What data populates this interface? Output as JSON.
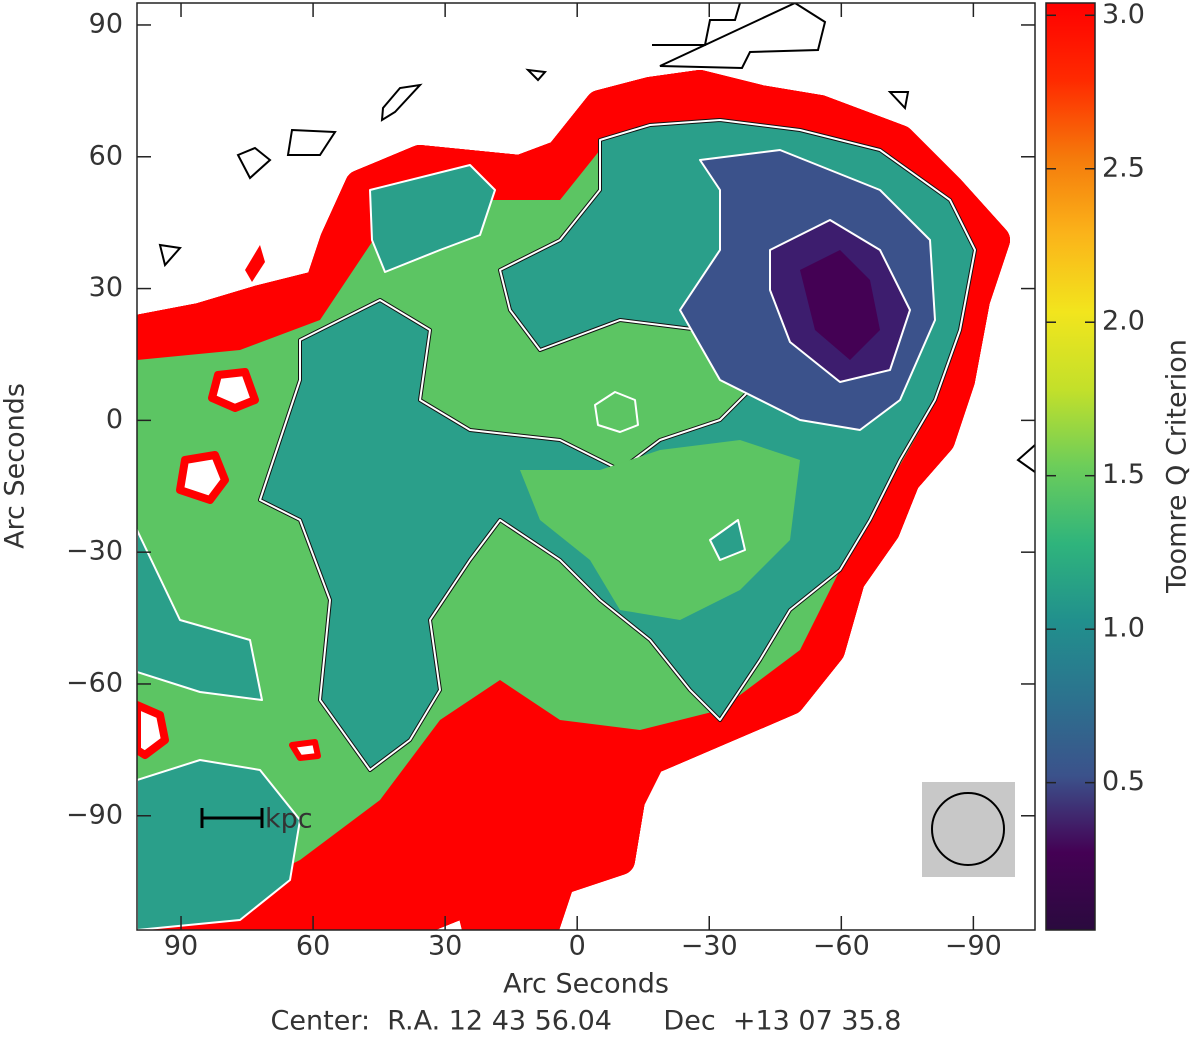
{
  "chart_data": {
    "type": "contour",
    "x_label": "Arc Seconds",
    "y_label": "Arc Seconds",
    "footer": "Center:  R.A. 12 43 56.04      Dec  +13 07 35.8",
    "colorbar_label": "Toomre Q Criterion",
    "scale_bar_label": "kpc",
    "xlim": [
      100,
      -104
    ],
    "ylim": [
      -116,
      95
    ],
    "xticks": [
      90,
      60,
      30,
      0,
      {
        "value": -30,
        "label": "−30"
      },
      {
        "value": -60,
        "label": "−60"
      },
      {
        "value": -90,
        "label": "−90"
      }
    ],
    "yticks": [
      90,
      60,
      30,
      0,
      {
        "value": -30,
        "label": "−30"
      },
      {
        "value": -60,
        "label": "−60"
      },
      {
        "value": -90,
        "label": "−90"
      }
    ],
    "clim": [
      0.02,
      3.04
    ],
    "cticks": [
      {
        "value": 0.5,
        "label": "0.5"
      },
      {
        "value": 1.0,
        "label": "1.0"
      },
      {
        "value": 1.5,
        "label": "1.5"
      },
      {
        "value": 2.0,
        "label": "2.0"
      },
      {
        "value": 2.5,
        "label": "2.5"
      },
      {
        "value": 3.0,
        "label": "3.0"
      }
    ],
    "colormap": [
      "#2a0a3e",
      "#440154",
      "#3b528b",
      "#2c728e",
      "#21908d",
      "#2fb47c",
      "#6ccd5a",
      "#c3e02a",
      "#f2e51d",
      "#fbb41a",
      "#f57a0b",
      "#ff2a00",
      "#ff0000"
    ]
  }
}
